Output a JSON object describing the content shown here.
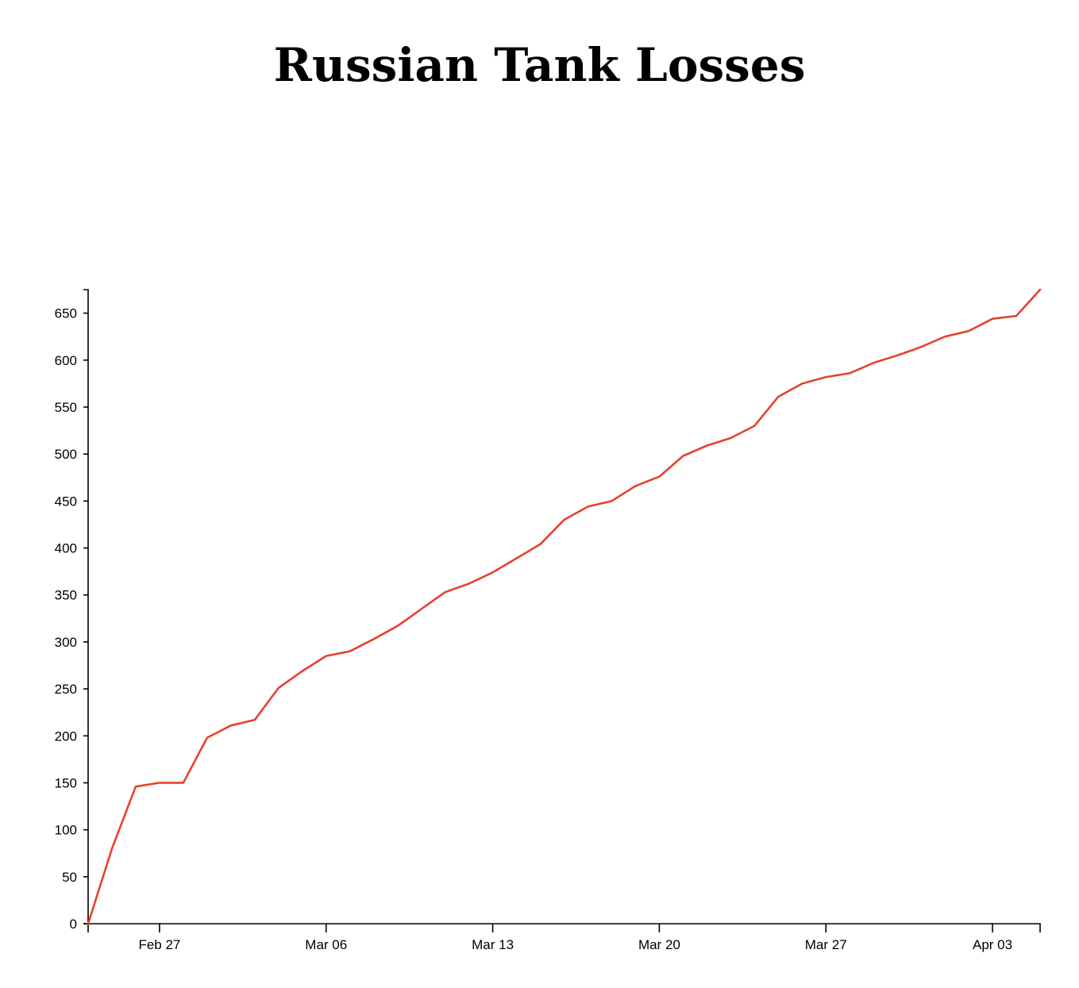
{
  "title": "Russian Tank Losses",
  "chart_data": {
    "type": "line",
    "title": "Russian Tank Losses",
    "xlabel": "",
    "ylabel": "",
    "x_start": "2022-02-24",
    "x": [
      "2022-02-24",
      "2022-02-25",
      "2022-02-26",
      "2022-02-27",
      "2022-02-28",
      "2022-03-01",
      "2022-03-02",
      "2022-03-03",
      "2022-03-04",
      "2022-03-05",
      "2022-03-06",
      "2022-03-07",
      "2022-03-08",
      "2022-03-09",
      "2022-03-10",
      "2022-03-11",
      "2022-03-12",
      "2022-03-13",
      "2022-03-14",
      "2022-03-15",
      "2022-03-16",
      "2022-03-17",
      "2022-03-18",
      "2022-03-19",
      "2022-03-20",
      "2022-03-21",
      "2022-03-22",
      "2022-03-23",
      "2022-03-24",
      "2022-03-25",
      "2022-03-26",
      "2022-03-27",
      "2022-03-28",
      "2022-03-29",
      "2022-03-30",
      "2022-03-31",
      "2022-04-01",
      "2022-04-02",
      "2022-04-03",
      "2022-04-04",
      "2022-04-05"
    ],
    "series": [
      {
        "color": "#e8412c",
        "values": [
          0,
          80,
          146,
          150,
          150,
          198,
          211,
          217,
          251,
          269,
          285,
          290,
          303,
          317,
          335,
          353,
          362,
          374,
          389,
          404,
          430,
          444,
          450,
          466,
          476,
          498,
          509,
          517,
          530,
          561,
          575,
          582,
          586,
          597,
          605,
          614,
          625,
          631,
          644,
          647,
          675
        ]
      }
    ],
    "xlim": [
      "2022-02-24",
      "2022-04-05"
    ],
    "ylim": [
      0,
      675
    ],
    "x_ticks": [
      {
        "date": "2022-02-27",
        "label": "Feb 27"
      },
      {
        "date": "2022-03-06",
        "label": "Mar 06"
      },
      {
        "date": "2022-03-13",
        "label": "Mar 13"
      },
      {
        "date": "2022-03-20",
        "label": "Mar 20"
      },
      {
        "date": "2022-03-27",
        "label": "Mar 27"
      },
      {
        "date": "2022-04-03",
        "label": "Apr 03"
      }
    ],
    "y_ticks": [
      0,
      50,
      100,
      150,
      200,
      250,
      300,
      350,
      400,
      450,
      500,
      550,
      600,
      650
    ],
    "grid": false,
    "legend": "none"
  }
}
